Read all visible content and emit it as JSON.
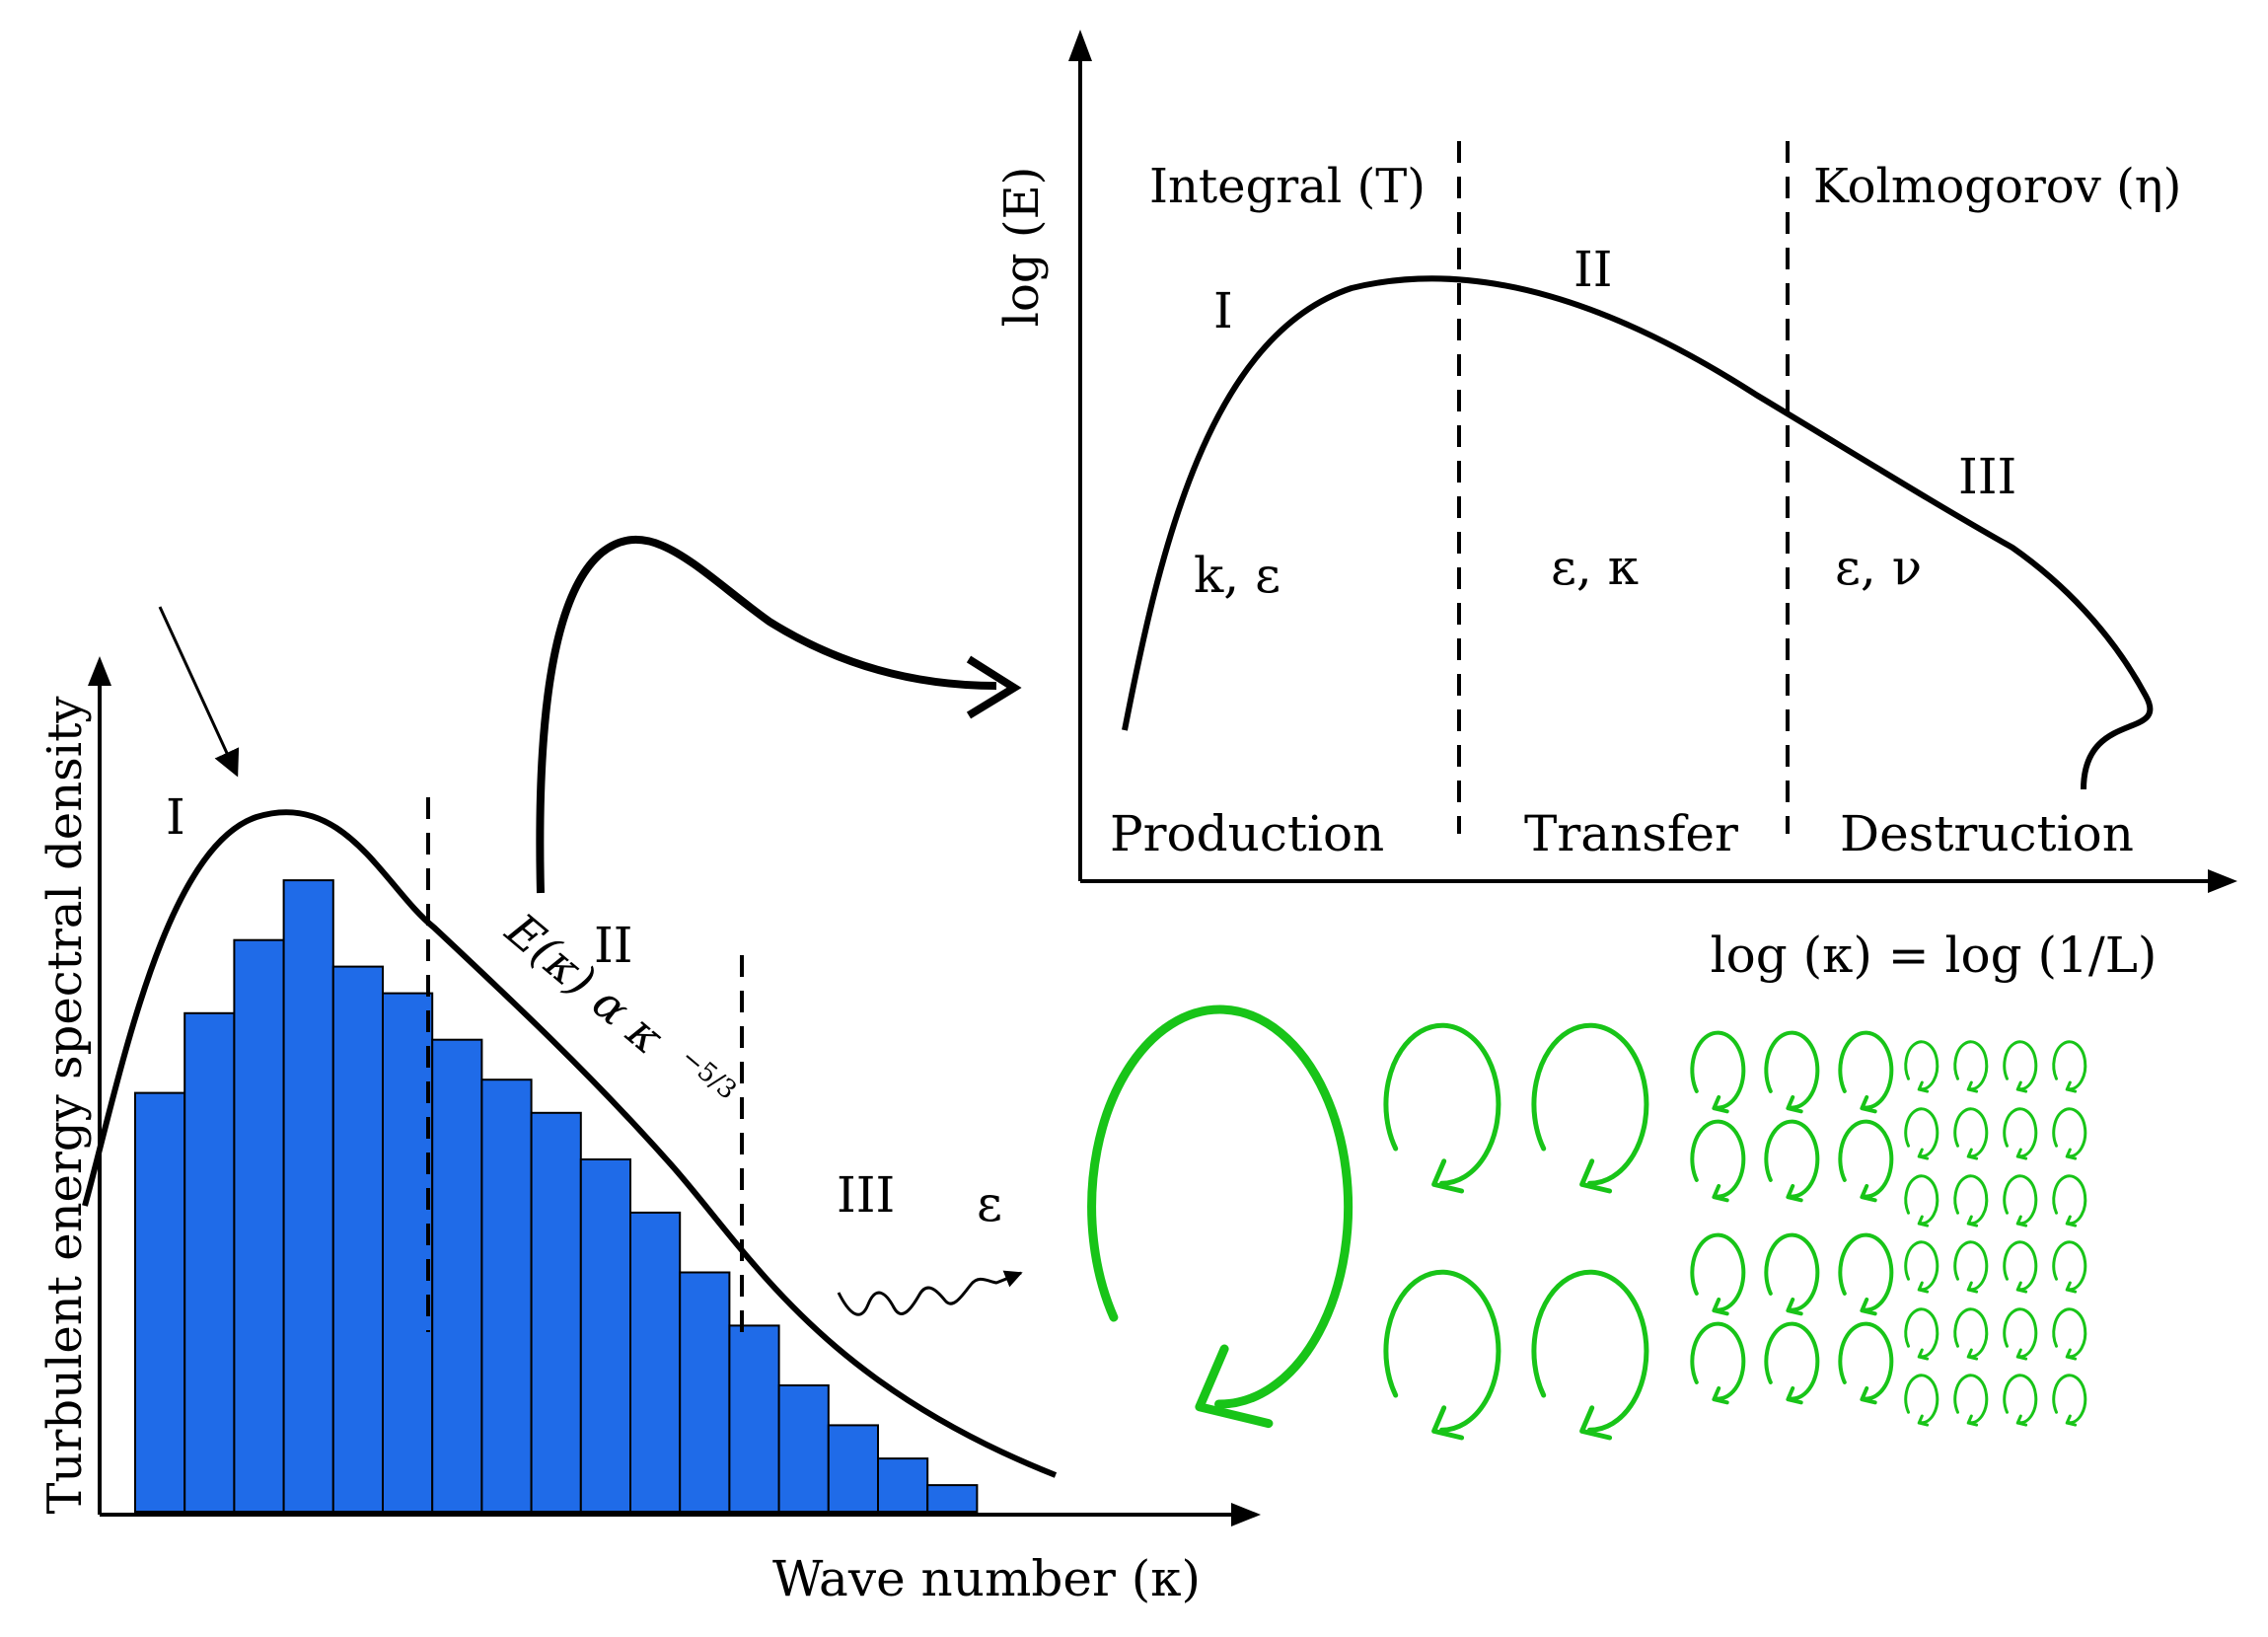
{
  "left_plot": {
    "ylabel": "Turbulent energy spectral density",
    "xlabel": "Wave number (κ)",
    "region_labels": [
      "I",
      "II",
      "III"
    ],
    "law_label": "E(κ) α κ",
    "law_exponent": "−5/3",
    "epsilon_label": "ε",
    "bar_color": "#1f6be8"
  },
  "chart_data": {
    "type": "bar",
    "title": "",
    "xlabel": "Wave number (κ)",
    "ylabel": "Turbulent energy spectral density",
    "values": [
      0.63,
      0.75,
      0.86,
      0.95,
      0.82,
      0.78,
      0.71,
      0.65,
      0.6,
      0.53,
      0.45,
      0.36,
      0.28,
      0.19,
      0.13,
      0.08,
      0.04
    ],
    "ylim": [
      0,
      1.25
    ]
  },
  "right_plot": {
    "ylabel": "log (E)",
    "xlabel": "log (κ) = log (1/L)",
    "scale_labels": [
      "Integral (T)",
      "Kolmogorov (η)"
    ],
    "region_labels": [
      "I",
      "II",
      "III"
    ],
    "region_params": [
      "k, ε",
      "ε, κ",
      "ε, ν"
    ],
    "phase_labels": [
      "Production",
      "Transfer",
      "Destruction"
    ]
  },
  "eddy_color": "#18c418"
}
